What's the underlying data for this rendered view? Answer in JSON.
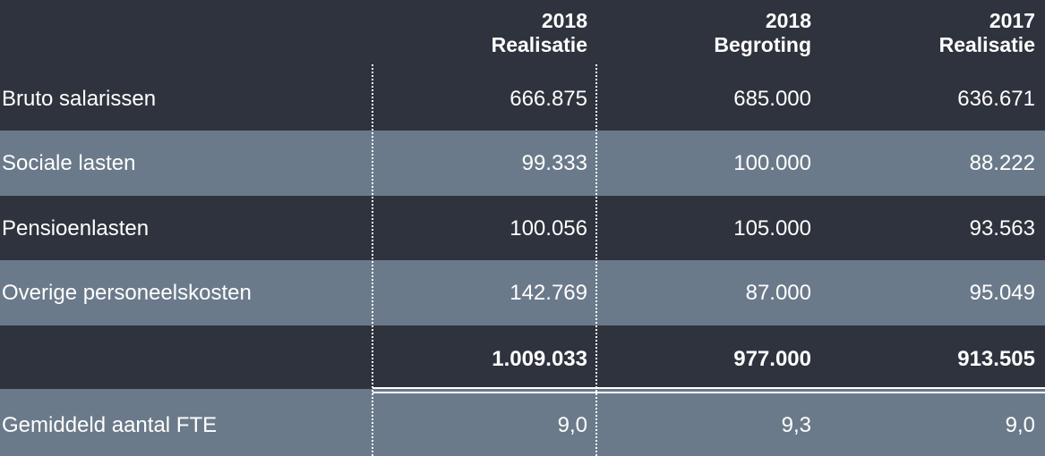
{
  "header": {
    "columns": [
      {
        "year": "2018",
        "type": "Realisatie"
      },
      {
        "year": "2018",
        "type": "Begroting"
      },
      {
        "year": "2017",
        "type": "Realisatie"
      }
    ]
  },
  "rows": [
    {
      "label": "Bruto salarissen",
      "values": [
        "666.875",
        "685.000",
        "636.671"
      ]
    },
    {
      "label": "Sociale lasten",
      "values": [
        "99.333",
        "100.000",
        "88.222"
      ]
    },
    {
      "label": "Pensioenlasten",
      "values": [
        "100.056",
        "105.000",
        "93.563"
      ]
    },
    {
      "label": "Overige personeelskosten",
      "values": [
        "142.769",
        "87.000",
        "95.049"
      ]
    }
  ],
  "total": {
    "values": [
      "1.009.033",
      "977.000",
      "913.505"
    ]
  },
  "fte": {
    "label": "Gemiddeld aantal FTE",
    "values": [
      "9,0",
      "9,3",
      "9,0"
    ]
  },
  "colors": {
    "dark_row": "#2e333d",
    "light_row": "#6b7a8a",
    "text": "#ffffff"
  }
}
